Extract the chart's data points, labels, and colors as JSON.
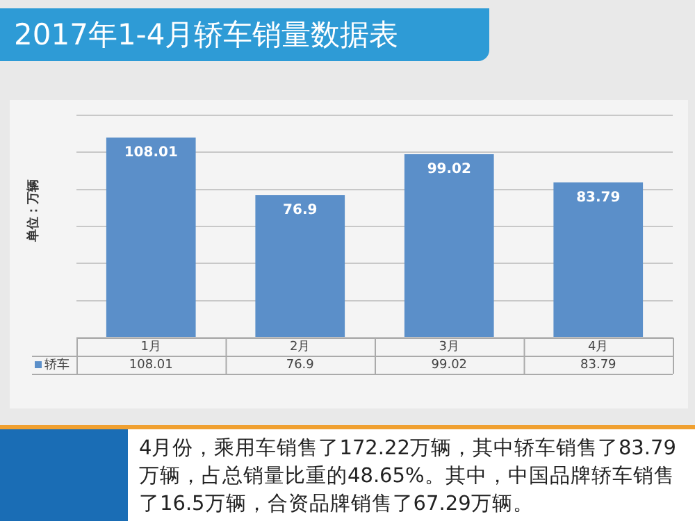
{
  "chart_data": {
    "type": "bar",
    "title": "2017年1-4月轿车销量数据表",
    "ylabel": "单位：万辆",
    "categories": [
      "1月",
      "2月",
      "3月",
      "4月"
    ],
    "series": [
      {
        "name": "轿车",
        "color": "#5b8fc9",
        "values": [
          108.01,
          76.9,
          99.02,
          83.79
        ]
      }
    ],
    "ylim": [
      0,
      120
    ],
    "yticks": [
      {
        "value": 0,
        "label": null
      },
      {
        "value": 20,
        "label": null
      },
      {
        "value": 40,
        "label": null
      },
      {
        "value": 60,
        "label": null
      },
      {
        "value": 80,
        "label": null
      },
      {
        "value": 100,
        "label": null
      },
      {
        "value": 120,
        "label": null
      }
    ],
    "grid": "y",
    "legend": "bottom",
    "data_labels": true,
    "annotations": [
      "108.01",
      "76.9",
      "99.02",
      "83.79",
      "4月份，乘用车销售了172.22万辆，其中轿车销售了83.79万辆，占总销量比重的48.65%。其中，中国品牌轿车销售了16.5万辆，合资品牌销售了67.29万辆。"
    ]
  }
}
